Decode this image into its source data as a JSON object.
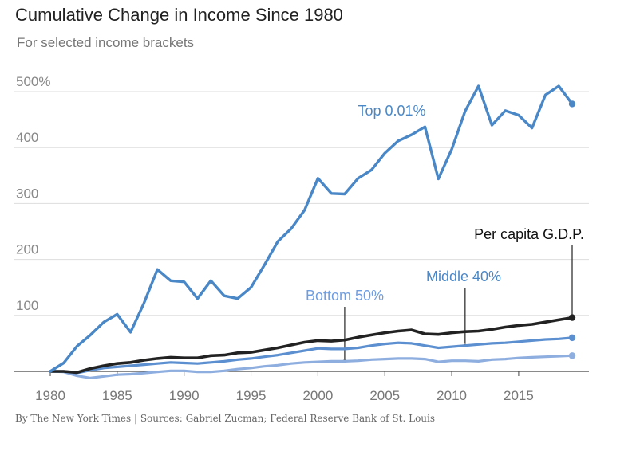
{
  "title": "Cumulative Change in Income Since 1980",
  "subtitle": "For selected income brackets",
  "source": "By The New York Times | Sources: Gabriel Zucman; Federal Reserve Bank of St. Louis",
  "chart_data": {
    "type": "line",
    "title": "Cumulative Change in Income Since 1980",
    "subtitle": "For selected income brackets",
    "x": [
      1980,
      1981,
      1982,
      1983,
      1984,
      1985,
      1986,
      1987,
      1988,
      1989,
      1990,
      1991,
      1992,
      1993,
      1994,
      1995,
      1996,
      1997,
      1998,
      1999,
      2000,
      2001,
      2002,
      2003,
      2004,
      2005,
      2006,
      2007,
      2008,
      2009,
      2010,
      2011,
      2012,
      2013,
      2014,
      2015,
      2016,
      2017,
      2018,
      2019
    ],
    "xlim": [
      1980,
      2019
    ],
    "ylim": [
      0,
      500
    ],
    "x_ticks": [
      1980,
      1985,
      1990,
      1995,
      2000,
      2005,
      2010,
      2015
    ],
    "x_tick_labels": [
      "1980",
      "1985",
      "1990",
      "1995",
      "2000",
      "2005",
      "2010",
      "2015"
    ],
    "y_ticks": [
      100,
      200,
      300,
      400,
      500
    ],
    "y_tick_labels": [
      "100",
      "200",
      "300",
      "400",
      "500%"
    ],
    "grid": true,
    "legend": "direct labels",
    "series": [
      {
        "name": "Top 0.01%",
        "color": "#4a87c7",
        "label_color": "#4a87c7",
        "values": [
          0,
          15,
          45,
          65,
          88,
          102,
          70,
          122,
          182,
          162,
          160,
          130,
          162,
          135,
          130,
          150,
          190,
          232,
          255,
          288,
          345,
          318,
          317,
          345,
          360,
          390,
          412,
          423,
          437,
          344,
          397,
          465,
          510,
          440,
          466,
          458,
          435,
          494,
          510,
          478
        ]
      },
      {
        "name": "Per capita G.D.P.",
        "color": "#222222",
        "label_color": "#111111",
        "values": [
          0,
          0,
          -2,
          5,
          10,
          14,
          16,
          20,
          23,
          25,
          24,
          24,
          28,
          29,
          33,
          34,
          38,
          42,
          47,
          52,
          55,
          54,
          56,
          61,
          65,
          69,
          72,
          74,
          67,
          66,
          69,
          71,
          72,
          75,
          79,
          82,
          84,
          88,
          92,
          96
        ]
      },
      {
        "name": "Middle 40%",
        "color": "#5b8fd0",
        "label_color": "#4a87c7",
        "values": [
          0,
          0,
          -3,
          2,
          6,
          8,
          10,
          12,
          14,
          16,
          15,
          14,
          16,
          18,
          21,
          23,
          26,
          29,
          33,
          37,
          41,
          40,
          40,
          42,
          46,
          49,
          51,
          50,
          46,
          42,
          44,
          46,
          48,
          50,
          51,
          53,
          55,
          57,
          58,
          60
        ]
      },
      {
        "name": "Bottom 50%",
        "color": "#8eaee0",
        "label_color": "#6f9ee0",
        "values": [
          0,
          -1,
          -8,
          -12,
          -9,
          -6,
          -5,
          -3,
          -1,
          1,
          1,
          -1,
          -1,
          1,
          4,
          6,
          9,
          11,
          14,
          16,
          17,
          18,
          18,
          19,
          21,
          22,
          23,
          23,
          22,
          17,
          19,
          19,
          18,
          21,
          22,
          24,
          25,
          26,
          27,
          28
        ]
      }
    ]
  }
}
